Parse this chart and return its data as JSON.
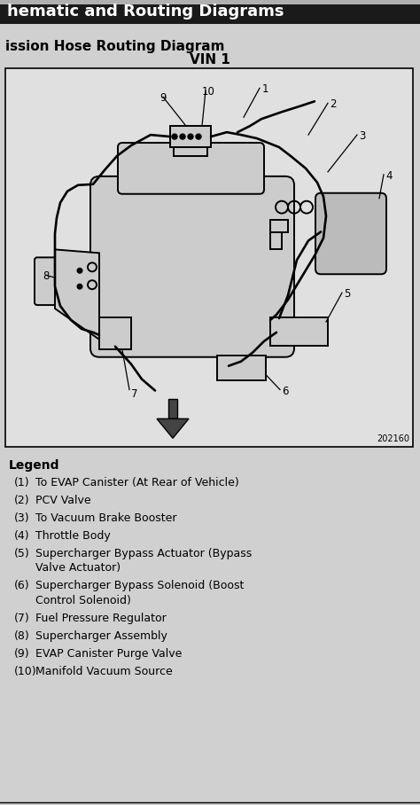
{
  "title1": "hematic and Routing Diagrams",
  "title2": "ission Hose Routing Diagram",
  "title3": "VIN 1",
  "fig_number": "202160",
  "bg_color": "#b0b0b0",
  "page_color": "#d0d0d0",
  "diagram_bg": "#e0e0e0",
  "legend_title": "Legend",
  "legend_items": [
    [
      "(1)",
      "To EVAP Canister (At Rear of Vehicle)"
    ],
    [
      "(2)",
      "PCV Valve"
    ],
    [
      "(3)",
      "To Vacuum Brake Booster"
    ],
    [
      "(4)",
      "Throttle Body"
    ],
    [
      "(5)",
      "Supercharger Bypass Actuator (Bypass\nValve Actuator)"
    ],
    [
      "(6)",
      "Supercharger Bypass Solenoid (Boost\nControl Solenoid)"
    ],
    [
      "(7)",
      "Fuel Pressure Regulator"
    ],
    [
      "(8)",
      "Supercharger Assembly"
    ],
    [
      "(9)",
      "EVAP Canister Purge Valve"
    ],
    [
      "(10)",
      "Manifold Vacuum Source"
    ]
  ]
}
